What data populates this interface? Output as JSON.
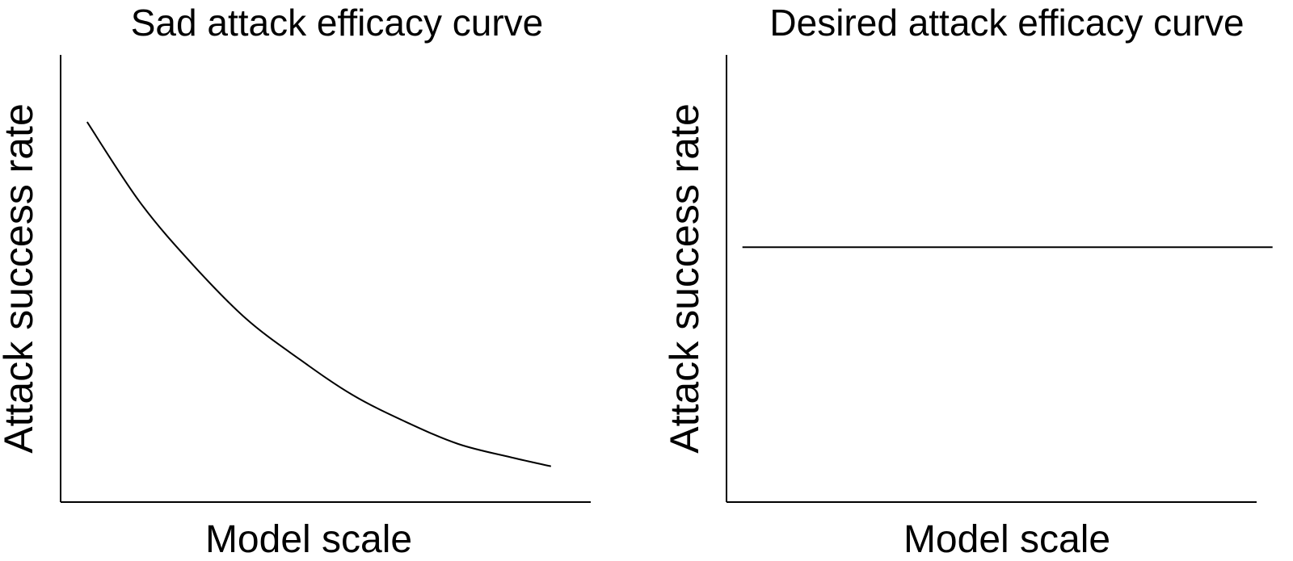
{
  "chart_data": [
    {
      "type": "line",
      "title": "Sad attack efficacy curve",
      "xlabel": "Model scale",
      "ylabel": "Attack success rate",
      "xlim": [
        0,
        1
      ],
      "ylim": [
        0,
        1
      ],
      "grid": false,
      "series": [
        {
          "x": [
            0.05,
            0.15,
            0.25,
            0.35,
            0.45,
            0.55,
            0.65,
            0.75,
            0.85,
            0.925
          ],
          "y": [
            0.85,
            0.67,
            0.53,
            0.41,
            0.32,
            0.24,
            0.18,
            0.13,
            0.1,
            0.08
          ]
        }
      ]
    },
    {
      "type": "line",
      "title": "Desired attack efficacy curve",
      "xlabel": "Model scale",
      "ylabel": "Attack success rate",
      "xlim": [
        0,
        1
      ],
      "ylim": [
        0,
        1
      ],
      "grid": false,
      "series": [
        {
          "x": [
            0.03,
            1.03
          ],
          "y": [
            0.57,
            0.57
          ]
        }
      ]
    }
  ]
}
